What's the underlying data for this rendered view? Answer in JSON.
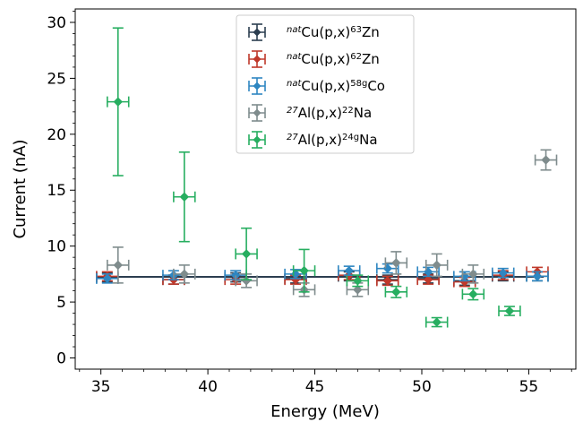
{
  "chart_data": {
    "type": "scatter",
    "title": "",
    "xlabel": "Energy (MeV)",
    "ylabel": "Current (nA)",
    "xlim": [
      33.8,
      57.2
    ],
    "ylim": [
      -1.0,
      31.2
    ],
    "xticks": [
      35,
      40,
      45,
      50,
      55
    ],
    "yticks": [
      0,
      5,
      10,
      15,
      20,
      25,
      30
    ],
    "grid": false,
    "legend_placement": "top-center",
    "series": [
      {
        "name_parts": [
          {
            "t": "nat",
            "s": "sup"
          },
          {
            "t": "Cu(p,x)"
          },
          {
            "t": "63",
            "s": "sup"
          },
          {
            "t": "Zn"
          }
        ],
        "color": "#2c3e50",
        "marker": "filled",
        "points": [
          {
            "x": 35.3,
            "y": 7.2,
            "xerr": 0.5,
            "yerr": 0.4
          },
          {
            "x": 38.4,
            "y": 7.0,
            "xerr": 0.5,
            "yerr": 0.4
          },
          {
            "x": 41.3,
            "y": 7.2,
            "xerr": 0.5,
            "yerr": 0.4
          },
          {
            "x": 44.1,
            "y": 7.1,
            "xerr": 0.5,
            "yerr": 0.4
          },
          {
            "x": 46.6,
            "y": 7.3,
            "xerr": 0.5,
            "yerr": 0.4
          },
          {
            "x": 48.4,
            "y": 7.0,
            "xerr": 0.5,
            "yerr": 0.4
          },
          {
            "x": 50.3,
            "y": 7.1,
            "xerr": 0.5,
            "yerr": 0.4
          },
          {
            "x": 52.0,
            "y": 6.9,
            "xerr": 0.5,
            "yerr": 0.4
          },
          {
            "x": 53.8,
            "y": 7.3,
            "xerr": 0.5,
            "yerr": 0.4
          },
          {
            "x": 55.4,
            "y": 7.3,
            "xerr": 0.5,
            "yerr": 0.4
          }
        ]
      },
      {
        "name_parts": [
          {
            "t": "nat",
            "s": "sup"
          },
          {
            "t": "Cu(p,x)"
          },
          {
            "t": "62",
            "s": "sup"
          },
          {
            "t": "Zn"
          }
        ],
        "color": "#c0392b",
        "marker": "filled",
        "points": [
          {
            "x": 35.3,
            "y": 7.3,
            "xerr": 0.5,
            "yerr": 0.4
          },
          {
            "x": 38.4,
            "y": 7.0,
            "xerr": 0.5,
            "yerr": 0.4
          },
          {
            "x": 41.3,
            "y": 7.0,
            "xerr": 0.5,
            "yerr": 0.4
          },
          {
            "x": 44.1,
            "y": 7.0,
            "xerr": 0.5,
            "yerr": 0.4
          },
          {
            "x": 46.6,
            "y": 7.4,
            "xerr": 0.5,
            "yerr": 0.4
          },
          {
            "x": 48.4,
            "y": 6.9,
            "xerr": 0.5,
            "yerr": 0.4
          },
          {
            "x": 50.3,
            "y": 7.0,
            "xerr": 0.5,
            "yerr": 0.4
          },
          {
            "x": 52.0,
            "y": 6.8,
            "xerr": 0.5,
            "yerr": 0.4
          },
          {
            "x": 53.8,
            "y": 7.4,
            "xerr": 0.5,
            "yerr": 0.4
          },
          {
            "x": 55.4,
            "y": 7.7,
            "xerr": 0.5,
            "yerr": 0.4
          }
        ]
      },
      {
        "name_parts": [
          {
            "t": "nat",
            "s": "sup"
          },
          {
            "t": "Cu(p,x)"
          },
          {
            "t": "58g",
            "s": "sup"
          },
          {
            "t": "Co"
          }
        ],
        "color": "#2e86c1",
        "marker": "filled",
        "points": [
          {
            "x": 35.3,
            "y": 7.1,
            "xerr": 0.5,
            "yerr": 0.4
          },
          {
            "x": 38.4,
            "y": 7.4,
            "xerr": 0.5,
            "yerr": 0.4
          },
          {
            "x": 41.3,
            "y": 7.4,
            "xerr": 0.5,
            "yerr": 0.4
          },
          {
            "x": 44.1,
            "y": 7.5,
            "xerr": 0.5,
            "yerr": 0.4
          },
          {
            "x": 46.6,
            "y": 7.8,
            "xerr": 0.5,
            "yerr": 0.4
          },
          {
            "x": 48.4,
            "y": 8.0,
            "xerr": 0.5,
            "yerr": 0.4
          },
          {
            "x": 50.3,
            "y": 7.7,
            "xerr": 0.5,
            "yerr": 0.4
          },
          {
            "x": 52.0,
            "y": 7.3,
            "xerr": 0.5,
            "yerr": 0.4
          },
          {
            "x": 53.8,
            "y": 7.6,
            "xerr": 0.5,
            "yerr": 0.4
          },
          {
            "x": 55.4,
            "y": 7.3,
            "xerr": 0.5,
            "yerr": 0.4
          }
        ]
      },
      {
        "name_parts": [
          {
            "t": "27",
            "s": "sup"
          },
          {
            "t": "Al(p,x)"
          },
          {
            "t": "22",
            "s": "sup"
          },
          {
            "t": "Na"
          }
        ],
        "color": "#7f8c8d",
        "marker": "filled",
        "points": [
          {
            "x": 35.8,
            "y": 8.3,
            "xerr": 0.5,
            "yerr": 1.6
          },
          {
            "x": 38.9,
            "y": 7.5,
            "xerr": 0.5,
            "yerr": 0.8
          },
          {
            "x": 41.8,
            "y": 6.9,
            "xerr": 0.5,
            "yerr": 0.6
          },
          {
            "x": 44.5,
            "y": 6.1,
            "xerr": 0.5,
            "yerr": 0.6
          },
          {
            "x": 47.0,
            "y": 6.1,
            "xerr": 0.5,
            "yerr": 0.6
          },
          {
            "x": 48.8,
            "y": 8.5,
            "xerr": 0.5,
            "yerr": 1.0
          },
          {
            "x": 50.7,
            "y": 8.3,
            "xerr": 0.5,
            "yerr": 1.0
          },
          {
            "x": 52.4,
            "y": 7.5,
            "xerr": 0.5,
            "yerr": 0.8
          },
          {
            "x": 55.8,
            "y": 17.7,
            "xerr": 0.5,
            "yerr": 0.9
          }
        ]
      },
      {
        "name_parts": [
          {
            "t": "27",
            "s": "sup"
          },
          {
            "t": "Al(p,x)"
          },
          {
            "t": "24g",
            "s": "sup"
          },
          {
            "t": "Na"
          }
        ],
        "color": "#27ae60",
        "marker": "filled",
        "points": [
          {
            "x": 35.8,
            "y": 22.9,
            "xerr": 0.5,
            "yerr": 6.6
          },
          {
            "x": 38.9,
            "y": 14.4,
            "xerr": 0.5,
            "yerr": 4.0
          },
          {
            "x": 41.8,
            "y": 9.3,
            "xerr": 0.5,
            "yerr": 2.3
          },
          {
            "x": 44.5,
            "y": 7.8,
            "xerr": 0.5,
            "yerr": 1.9
          },
          {
            "x": 47.0,
            "y": 6.9,
            "xerr": 0.5,
            "yerr": 0.5
          },
          {
            "x": 48.8,
            "y": 5.9,
            "xerr": 0.5,
            "yerr": 0.5
          },
          {
            "x": 50.7,
            "y": 3.2,
            "xerr": 0.5,
            "yerr": 0.4
          },
          {
            "x": 52.4,
            "y": 5.7,
            "xerr": 0.5,
            "yerr": 0.5
          },
          {
            "x": 54.1,
            "y": 4.2,
            "xerr": 0.5,
            "yerr": 0.4
          }
        ]
      }
    ],
    "reference_line": {
      "x_start": 35.0,
      "x_end": 55.7,
      "y": 7.25,
      "color": "#2c3e50"
    }
  }
}
